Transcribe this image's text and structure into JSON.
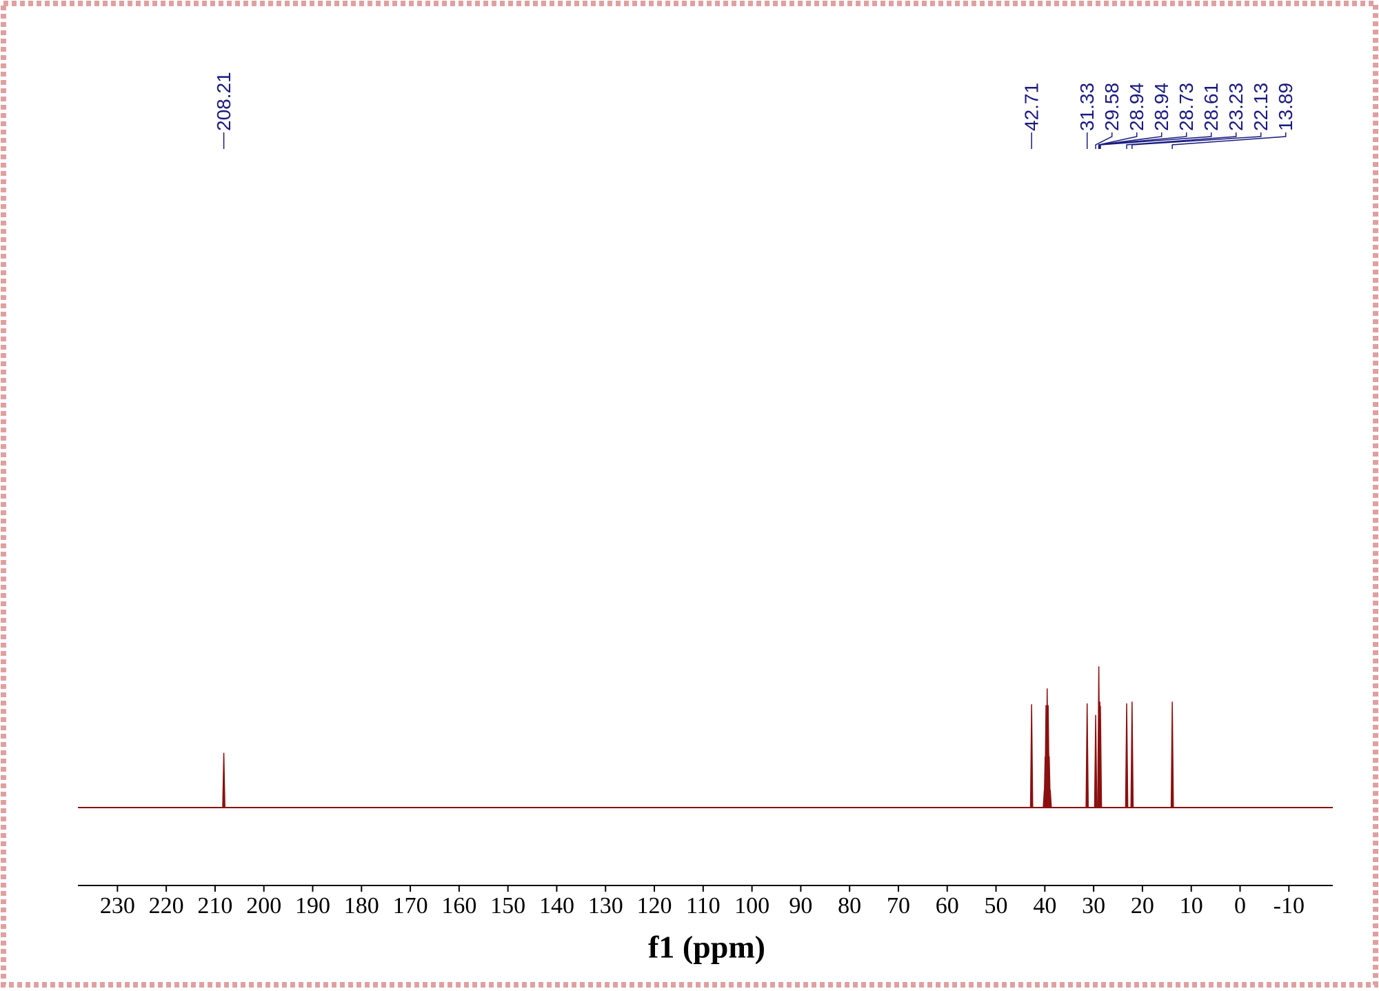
{
  "chart_data": {
    "type": "spectrum",
    "xlabel": "f1 (ppm)",
    "xlim": [
      238.1,
      -19
    ],
    "xticks": [
      230,
      220,
      210,
      200,
      190,
      180,
      170,
      160,
      150,
      140,
      130,
      120,
      110,
      100,
      90,
      80,
      70,
      60,
      50,
      40,
      30,
      20,
      10,
      0,
      -10
    ],
    "ylim": [
      0,
      100
    ],
    "color": "#8b1010",
    "label_color": "#1a1a80",
    "x": [
      208.21,
      42.71,
      40.1,
      39.93,
      39.76,
      39.52,
      39.31,
      39.1,
      38.89,
      31.33,
      29.58,
      28.94,
      28.73,
      28.61,
      23.23,
      22.13,
      13.89
    ],
    "values": [
      31,
      58.5,
      10,
      29,
      58,
      67.5,
      58,
      29,
      10,
      59,
      52.5,
      80,
      60,
      57.5,
      59,
      60,
      60
    ],
    "peak_labels": [
      208.21,
      42.71,
      31.33,
      29.58,
      28.94,
      28.94,
      28.73,
      28.61,
      23.23,
      22.13,
      13.89
    ]
  }
}
